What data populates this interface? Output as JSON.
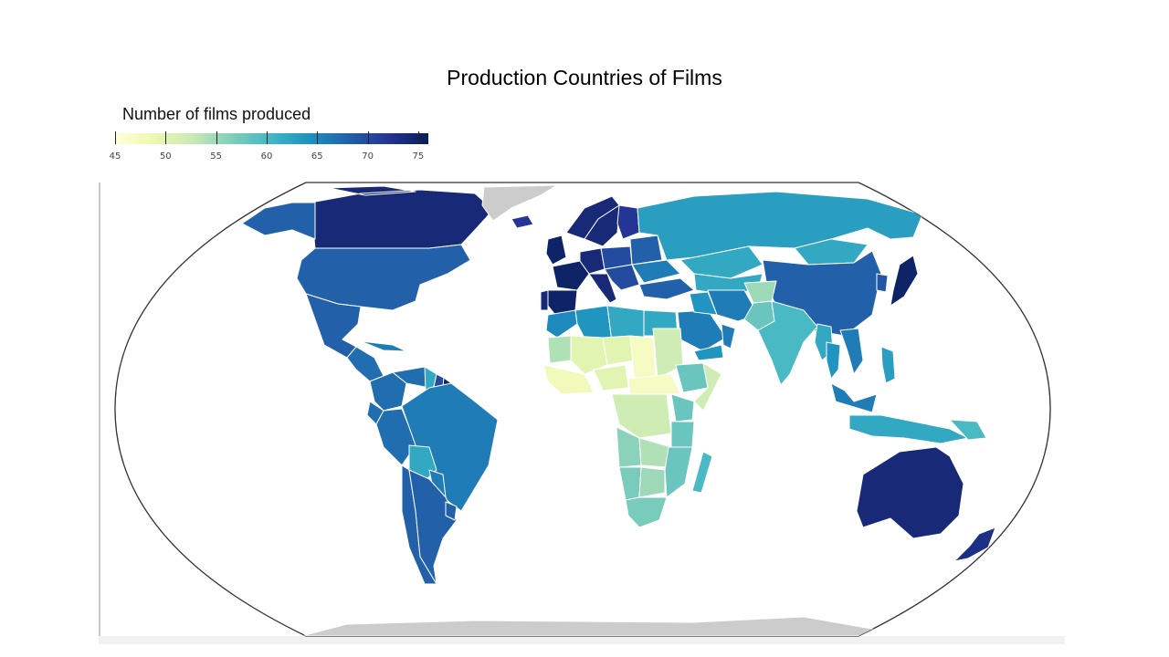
{
  "title": "Production Countries of Films",
  "legend": {
    "title": "Number of films produced",
    "ticks": [
      "45",
      "50",
      "55",
      "60",
      "65",
      "70",
      "75"
    ],
    "min": 45,
    "max": 76,
    "colors": [
      "#ffffd9",
      "#edf8b1",
      "#c7e9b4",
      "#7fcdbb",
      "#41b6c4",
      "#1d91c0",
      "#225ea8",
      "#253494",
      "#081d58"
    ]
  },
  "chart_data": {
    "type": "choropleth",
    "title": "Production Countries of Films",
    "legend_title": "Number of films produced",
    "colorbar_range": [
      45,
      76
    ],
    "colorbar_ticks": [
      45,
      50,
      55,
      60,
      65,
      70,
      75
    ],
    "projection": "Robinson",
    "no_data_color": "#cccccc",
    "regions": [
      {
        "name": "Canada",
        "value": 74
      },
      {
        "name": "United States",
        "value": 68
      },
      {
        "name": "Alaska",
        "value": 68
      },
      {
        "name": "Greenland",
        "value": null
      },
      {
        "name": "Mexico",
        "value": 68
      },
      {
        "name": "Central America",
        "value": 67
      },
      {
        "name": "Cuba",
        "value": 66
      },
      {
        "name": "Colombia",
        "value": 67
      },
      {
        "name": "Venezuela",
        "value": 67
      },
      {
        "name": "Guyana",
        "value": 62
      },
      {
        "name": "Suriname",
        "value": 70
      },
      {
        "name": "French Guiana",
        "value": 75
      },
      {
        "name": "Ecuador",
        "value": 67
      },
      {
        "name": "Peru",
        "value": 67
      },
      {
        "name": "Brazil",
        "value": 66
      },
      {
        "name": "Bolivia",
        "value": 62
      },
      {
        "name": "Paraguay",
        "value": 66
      },
      {
        "name": "Chile",
        "value": 68
      },
      {
        "name": "Argentina",
        "value": 68
      },
      {
        "name": "Uruguay",
        "value": 68
      },
      {
        "name": "Iceland",
        "value": 72
      },
      {
        "name": "Norway",
        "value": 74
      },
      {
        "name": "Sweden",
        "value": 74
      },
      {
        "name": "Finland",
        "value": 72
      },
      {
        "name": "United Kingdom",
        "value": 75
      },
      {
        "name": "France",
        "value": 75
      },
      {
        "name": "Spain",
        "value": 75
      },
      {
        "name": "Portugal",
        "value": 74
      },
      {
        "name": "Germany",
        "value": 74
      },
      {
        "name": "Italy",
        "value": 74
      },
      {
        "name": "Poland",
        "value": 70
      },
      {
        "name": "Eastern Europe",
        "value": 68
      },
      {
        "name": "Balkans",
        "value": 70
      },
      {
        "name": "Ukraine",
        "value": 66
      },
      {
        "name": "Turkey",
        "value": 68
      },
      {
        "name": "Russia",
        "value": 63
      },
      {
        "name": "Kazakhstan",
        "value": 62
      },
      {
        "name": "Central Asia",
        "value": 62
      },
      {
        "name": "Mongolia",
        "value": 62
      },
      {
        "name": "China",
        "value": 68
      },
      {
        "name": "Korea",
        "value": 69
      },
      {
        "name": "Japan",
        "value": 75
      },
      {
        "name": "Morocco",
        "value": 65
      },
      {
        "name": "Algeria",
        "value": 64
      },
      {
        "name": "Libya",
        "value": 62
      },
      {
        "name": "Egypt",
        "value": 62
      },
      {
        "name": "Saudi Arabia",
        "value": 66
      },
      {
        "name": "Yemen",
        "value": 64
      },
      {
        "name": "Oman",
        "value": 66
      },
      {
        "name": "Iran",
        "value": 66
      },
      {
        "name": "Iraq",
        "value": 64
      },
      {
        "name": "Afghanistan",
        "value": 55
      },
      {
        "name": "Pakistan",
        "value": 58
      },
      {
        "name": "India",
        "value": 60
      },
      {
        "name": "Myanmar",
        "value": 62
      },
      {
        "name": "Thailand",
        "value": 64
      },
      {
        "name": "Vietnam",
        "value": 66
      },
      {
        "name": "Malaysia",
        "value": 66
      },
      {
        "name": "Indonesia",
        "value": 62
      },
      {
        "name": "Philippines",
        "value": 63
      },
      {
        "name": "Papua New Guinea",
        "value": 60
      },
      {
        "name": "Australia",
        "value": 74
      },
      {
        "name": "New Zealand",
        "value": 73
      },
      {
        "name": "Mauritania",
        "value": 54
      },
      {
        "name": "Mali",
        "value": 50
      },
      {
        "name": "Niger",
        "value": 50
      },
      {
        "name": "Chad",
        "value": 47
      },
      {
        "name": "Sudan",
        "value": 52
      },
      {
        "name": "Ethiopia",
        "value": 58
      },
      {
        "name": "Somalia",
        "value": 52
      },
      {
        "name": "Nigeria",
        "value": 50
      },
      {
        "name": "West Africa coast",
        "value": 48
      },
      {
        "name": "Central Africa",
        "value": 47
      },
      {
        "name": "DR Congo",
        "value": 52
      },
      {
        "name": "Kenya",
        "value": 58
      },
      {
        "name": "Tanzania",
        "value": 58
      },
      {
        "name": "Angola",
        "value": 56
      },
      {
        "name": "Zambia",
        "value": 54
      },
      {
        "name": "Mozambique",
        "value": 58
      },
      {
        "name": "Namibia",
        "value": 57
      },
      {
        "name": "Botswana",
        "value": 55
      },
      {
        "name": "South Africa",
        "value": 57
      },
      {
        "name": "Madagascar",
        "value": 60
      },
      {
        "name": "Antarctica",
        "value": null
      }
    ]
  }
}
